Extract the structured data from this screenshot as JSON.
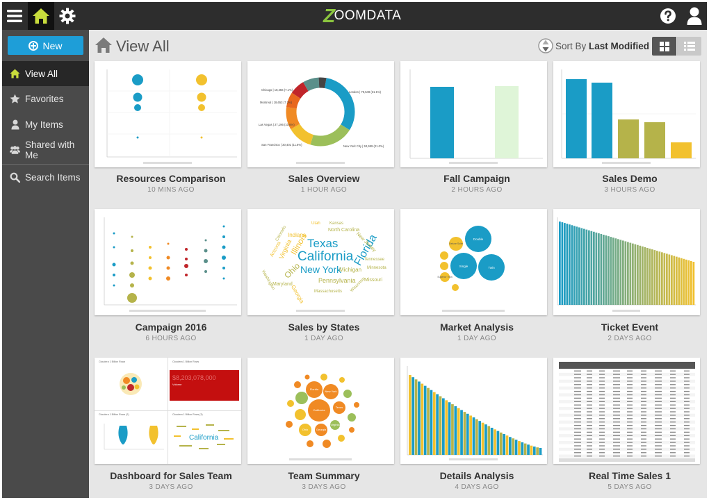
{
  "app": {
    "logo_text": "OOMDATA",
    "logo_mark": "Z"
  },
  "topbar": {
    "menu_icon": "hamburger-menu-icon",
    "home_icon": "home-icon",
    "settings_icon": "gear-icon",
    "help_icon": "help-icon",
    "user_icon": "user-icon",
    "home_color": "#c8dc3c"
  },
  "sidebar": {
    "new_label": "New",
    "accent": "#1e9ed8",
    "items": [
      {
        "label": "View All",
        "icon": "home-icon",
        "active": true
      },
      {
        "label": "Favorites",
        "icon": "star-icon"
      },
      {
        "label": "My Items",
        "icon": "user-icon"
      },
      {
        "label": "Shared with Me",
        "icon": "users-icon"
      },
      {
        "label": "Search Items",
        "icon": "search-icon"
      }
    ]
  },
  "header": {
    "title": "View All",
    "sort_prefix": "Sort By",
    "sort_value": "Last Modified",
    "grid_view_icon": "grid-view-icon",
    "list_view_icon": "list-view-icon"
  },
  "cards": [
    {
      "title": "Resources Comparison",
      "time": "10 MINS AGO",
      "thumb": "bubbles"
    },
    {
      "title": "Sales Overview",
      "time": "1 HOUR AGO",
      "thumb": "donut"
    },
    {
      "title": "Fall Campaign",
      "time": "2 HOURS AGO",
      "thumb": "twobars"
    },
    {
      "title": "Sales Demo",
      "time": "3 HOURS AGO",
      "thumb": "fivebars"
    },
    {
      "title": "Campaign 2016",
      "time": "6 HOURS AGO",
      "thumb": "scatter"
    },
    {
      "title": "Sales by States",
      "time": "1 DAY AGO",
      "thumb": "wordcloud"
    },
    {
      "title": "Market Analysis",
      "time": "1 DAY AGO",
      "thumb": "packed"
    },
    {
      "title": "Ticket Event",
      "time": "2 DAYS AGO",
      "thumb": "manybars"
    },
    {
      "title": "Dashboard for Sales Team",
      "time": "3 DAYS AGO",
      "thumb": "dashboard"
    },
    {
      "title": "Team Summary",
      "time": "3 DAYS AGO",
      "thumb": "packed2"
    },
    {
      "title": "Details Analysis",
      "time": "4 DAYS AGO",
      "thumb": "groupedbars"
    },
    {
      "title": "Real Time Sales 1",
      "time": "5 DAYS AGO",
      "thumb": "table"
    }
  ],
  "thumb_text": {
    "donut_center_labels": [
      "London | 79,549 (31.1%)",
      "New York City | 53,989 (21.0%)",
      "San Francisco | 30,401 (11.8%)",
      "Las Vegas | 27,196 (10.6%)",
      "Montreal | 18,653 (7.3%)",
      "Chicago | 18,256 (7.1%)"
    ],
    "wordcloud_words": [
      "Texas",
      "California",
      "Florida",
      "New York",
      "Illinois",
      "Ohio",
      "Michigan",
      "Pennsylvania",
      "Georgia",
      "Virginia",
      "Indiana",
      "North Carolina",
      "New Jersey",
      "Missouri",
      "Tennessee",
      "Minnesota",
      "Maryland",
      "Massachusetts",
      "Arizona",
      "Colorado",
      "Utah",
      "Kansas",
      "Washington",
      "Wisconsin"
    ],
    "market_bubbles": [
      "Double",
      "Single",
      "Twin",
      "Deluxe Suite",
      "Superior Twin"
    ],
    "team_bubbles": [
      "Florida",
      "New York",
      "California",
      "Texas",
      "Ohio",
      "Georgia",
      "Virginia"
    ],
    "dashboard_number": "$8,203,078,000",
    "dashboard_number_label": "Volume",
    "dashboard_word": "California",
    "dashboard_panel_titles": [
      "Cloudera 1 Billion Rows",
      "Cloudera 1 Billion Rows",
      "Cloudera 1 Billion Rows (2)",
      "Cloudera 1 Billion Rows (3)"
    ]
  },
  "colors": {
    "blue": "#1a9cc6",
    "yellow": "#f2c12e",
    "lightgreen": "#dff5d8",
    "olive": "#b5b34a",
    "orange": "#f08a24",
    "red": "#c0252a"
  }
}
